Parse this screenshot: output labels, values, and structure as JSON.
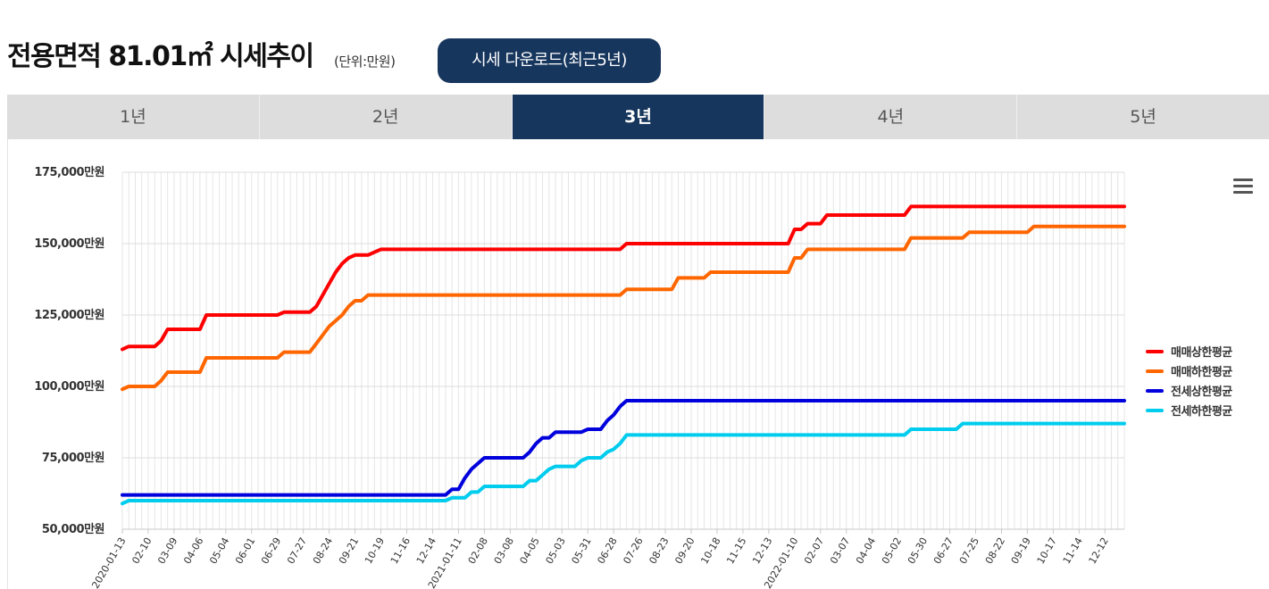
{
  "header": {
    "title": "전용면적 81.01㎡ 시세추이",
    "unit": "(단위:만원)",
    "download_label": "시세 다운로드(최근5년)"
  },
  "tabs": [
    {
      "label": "1년",
      "active": false
    },
    {
      "label": "2년",
      "active": false
    },
    {
      "label": "3년",
      "active": true
    },
    {
      "label": "4년",
      "active": false
    },
    {
      "label": "5년",
      "active": false
    }
  ],
  "chart_data": {
    "type": "line",
    "title": "",
    "xlabel": "",
    "ylabel": "",
    "ylim": [
      50000,
      175000
    ],
    "y_ticks": [
      50000,
      75000,
      100000,
      125000,
      150000,
      175000
    ],
    "y_tick_suffix": "만원",
    "x_ticks": [
      "2020-01-13",
      "02-10",
      "03-09",
      "04-06",
      "05-04",
      "06-01",
      "06-29",
      "07-27",
      "08-24",
      "09-21",
      "10-19",
      "11-16",
      "12-14",
      "2021-01-11",
      "02-08",
      "03-08",
      "04-05",
      "05-03",
      "05-31",
      "06-28",
      "07-26",
      "08-23",
      "09-20",
      "10-18",
      "11-15",
      "12-13",
      "2022-01-10",
      "02-07",
      "03-07",
      "04-04",
      "05-02",
      "05-30",
      "06-27",
      "07-25",
      "08-22",
      "09-19",
      "10-17",
      "11-14",
      "12-12"
    ],
    "x_range": [
      0,
      155
    ],
    "legend_position": "right",
    "series": [
      {
        "name": "매매상한평균",
        "color": "#ff0000",
        "points": [
          [
            0,
            113000
          ],
          [
            1,
            114000
          ],
          [
            5,
            114000
          ],
          [
            6,
            116000
          ],
          [
            7,
            120000
          ],
          [
            12,
            120000
          ],
          [
            13,
            125000
          ],
          [
            24,
            125000
          ],
          [
            25,
            126000
          ],
          [
            29,
            126000
          ],
          [
            30,
            128000
          ],
          [
            31,
            132000
          ],
          [
            32,
            136000
          ],
          [
            33,
            140000
          ],
          [
            34,
            143000
          ],
          [
            35,
            145000
          ],
          [
            36,
            146000
          ],
          [
            38,
            146000
          ],
          [
            39,
            147000
          ],
          [
            40,
            148000
          ],
          [
            77,
            148000
          ],
          [
            78,
            150000
          ],
          [
            103,
            150000
          ],
          [
            104,
            155000
          ],
          [
            105,
            155000
          ],
          [
            106,
            157000
          ],
          [
            108,
            157000
          ],
          [
            109,
            160000
          ],
          [
            121,
            160000
          ],
          [
            122,
            163000
          ],
          [
            155,
            163000
          ]
        ]
      },
      {
        "name": "매매하한평균",
        "color": "#ff6600",
        "points": [
          [
            0,
            99000
          ],
          [
            1,
            100000
          ],
          [
            5,
            100000
          ],
          [
            6,
            102000
          ],
          [
            7,
            105000
          ],
          [
            12,
            105000
          ],
          [
            13,
            110000
          ],
          [
            24,
            110000
          ],
          [
            25,
            112000
          ],
          [
            29,
            112000
          ],
          [
            30,
            115000
          ],
          [
            31,
            118000
          ],
          [
            32,
            121000
          ],
          [
            33,
            123000
          ],
          [
            34,
            125000
          ],
          [
            35,
            128000
          ],
          [
            36,
            130000
          ],
          [
            37,
            130000
          ],
          [
            38,
            132000
          ],
          [
            77,
            132000
          ],
          [
            78,
            134000
          ],
          [
            85,
            134000
          ],
          [
            86,
            138000
          ],
          [
            90,
            138000
          ],
          [
            91,
            140000
          ],
          [
            103,
            140000
          ],
          [
            104,
            145000
          ],
          [
            105,
            145000
          ],
          [
            106,
            148000
          ],
          [
            121,
            148000
          ],
          [
            122,
            152000
          ],
          [
            130,
            152000
          ],
          [
            131,
            154000
          ],
          [
            140,
            154000
          ],
          [
            141,
            156000
          ],
          [
            155,
            156000
          ]
        ]
      },
      {
        "name": "전세상한평균",
        "color": "#0000dd",
        "points": [
          [
            0,
            62000
          ],
          [
            50,
            62000
          ],
          [
            51,
            64000
          ],
          [
            52,
            64000
          ],
          [
            53,
            68000
          ],
          [
            54,
            71000
          ],
          [
            55,
            73000
          ],
          [
            56,
            75000
          ],
          [
            62,
            75000
          ],
          [
            63,
            77000
          ],
          [
            64,
            80000
          ],
          [
            65,
            82000
          ],
          [
            66,
            82000
          ],
          [
            67,
            84000
          ],
          [
            71,
            84000
          ],
          [
            72,
            85000
          ],
          [
            74,
            85000
          ],
          [
            75,
            88000
          ],
          [
            76,
            90000
          ],
          [
            77,
            93000
          ],
          [
            78,
            95000
          ],
          [
            155,
            95000
          ]
        ]
      },
      {
        "name": "전세하한평균",
        "color": "#00ccee",
        "points": [
          [
            0,
            59000
          ],
          [
            1,
            60000
          ],
          [
            50,
            60000
          ],
          [
            51,
            61000
          ],
          [
            53,
            61000
          ],
          [
            54,
            63000
          ],
          [
            55,
            63000
          ],
          [
            56,
            65000
          ],
          [
            62,
            65000
          ],
          [
            63,
            67000
          ],
          [
            64,
            67000
          ],
          [
            65,
            69000
          ],
          [
            66,
            71000
          ],
          [
            67,
            72000
          ],
          [
            70,
            72000
          ],
          [
            71,
            74000
          ],
          [
            72,
            75000
          ],
          [
            74,
            75000
          ],
          [
            75,
            77000
          ],
          [
            76,
            78000
          ],
          [
            77,
            80000
          ],
          [
            78,
            83000
          ],
          [
            121,
            83000
          ],
          [
            122,
            85000
          ],
          [
            129,
            85000
          ],
          [
            130,
            87000
          ],
          [
            155,
            87000
          ]
        ]
      }
    ]
  }
}
